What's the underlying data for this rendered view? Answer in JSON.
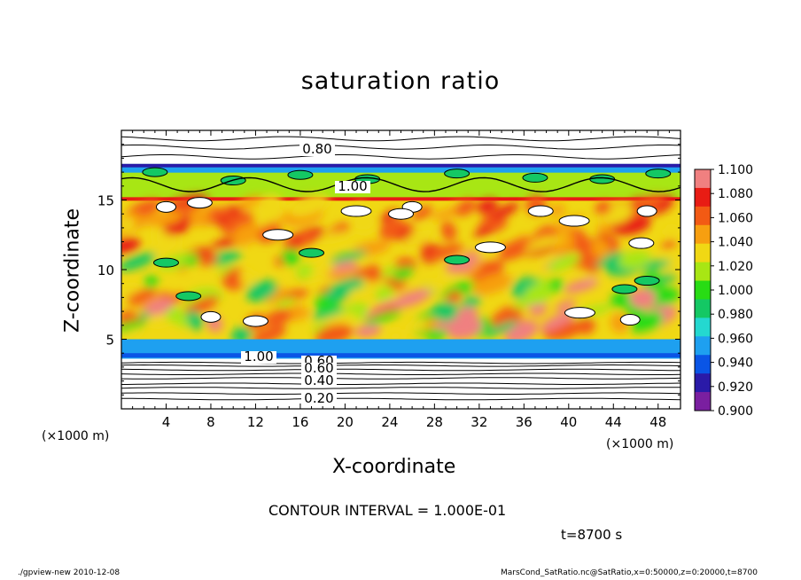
{
  "chart_data": {
    "type": "heatmap",
    "title": "saturation ratio",
    "xlabel": "X-coordinate",
    "ylabel": "Z-coordinate",
    "x_unit": "(×1000 m)",
    "y_unit": "(×1000 m)",
    "xlim": [
      0,
      50
    ],
    "ylim": [
      0,
      20
    ],
    "x_ticks": [
      4,
      8,
      12,
      16,
      20,
      24,
      28,
      32,
      36,
      40,
      44,
      48
    ],
    "y_ticks": [
      5,
      10,
      15
    ],
    "colorbar": {
      "min": 0.9,
      "max": 1.1,
      "labels": [
        "1.100",
        "1.080",
        "1.060",
        "1.040",
        "1.020",
        "1.000",
        "0.980",
        "0.960",
        "0.940",
        "0.920",
        "0.900"
      ],
      "colors": [
        "#7a1fa0",
        "#2a1aa8",
        "#0a55e6",
        "#1ea0f0",
        "#24d8d0",
        "#14c864",
        "#28dc14",
        "#a8e614",
        "#f0d814",
        "#f79f10",
        "#f25a14",
        "#e81c14",
        "#f08080"
      ]
    },
    "contour_labels": [
      "0.80",
      "1.00",
      "1.00",
      "0.60",
      "0.60",
      "0.40",
      "0.20"
    ],
    "contour_interval_text": "CONTOUR INTERVAL = 1.000E-01",
    "time_text": "t=8700 s"
  },
  "footer": {
    "left": "./gpview-new   2010-12-08",
    "right": "MarsCond_SatRatio.nc@SatRatio,x=0:50000,z=0:20000,t=8700"
  }
}
